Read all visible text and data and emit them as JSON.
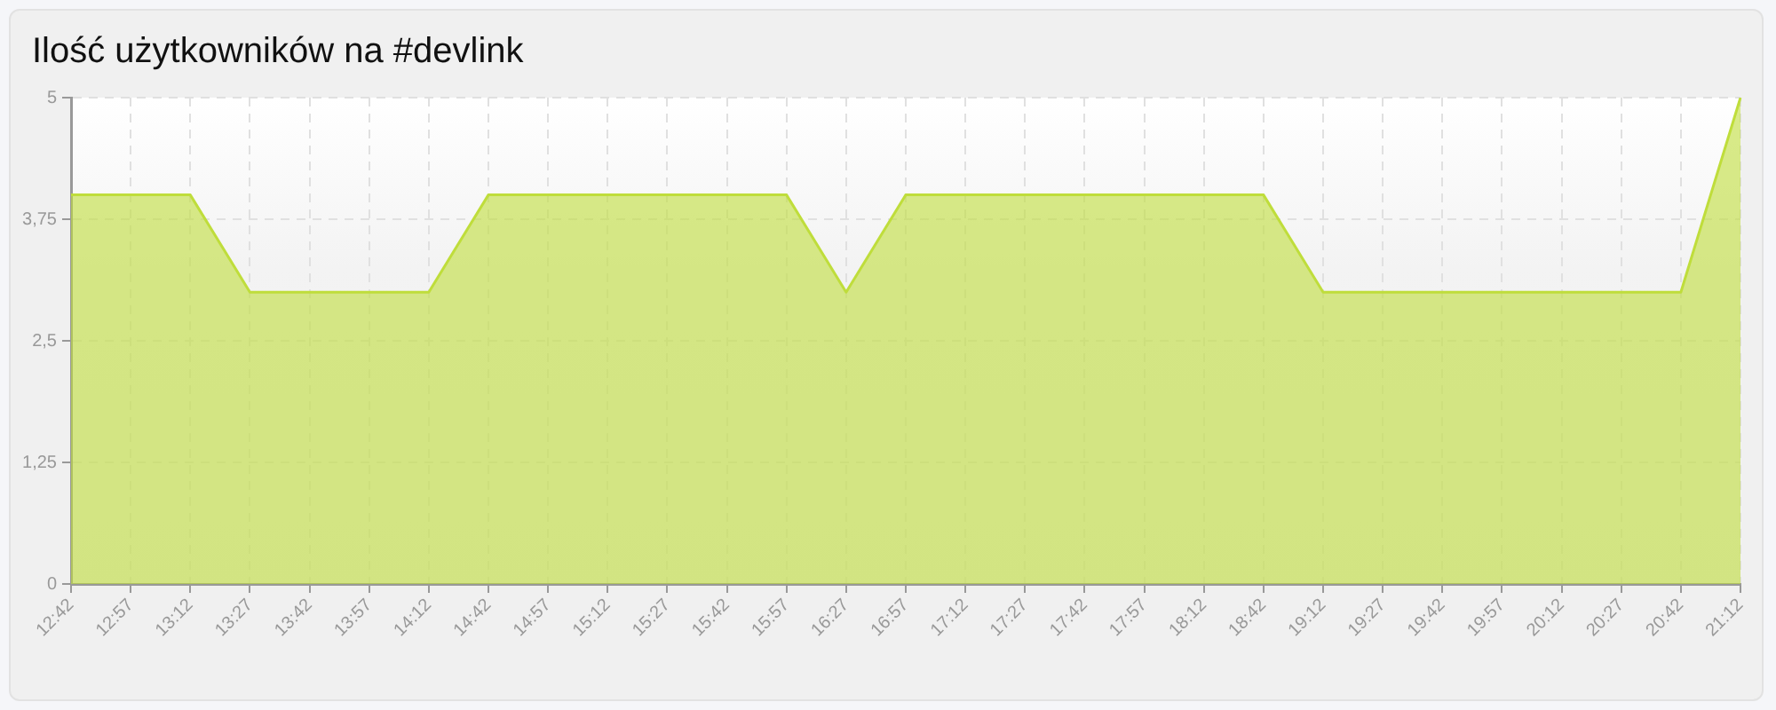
{
  "chart_data": {
    "type": "area",
    "title": "Ilość użytkowników na #devlink",
    "categories": [
      "12:42",
      "12:57",
      "13:12",
      "13:27",
      "13:42",
      "13:57",
      "14:12",
      "14:42",
      "14:57",
      "15:12",
      "15:27",
      "15:42",
      "15:57",
      "16:27",
      "16:57",
      "17:12",
      "17:27",
      "17:42",
      "17:57",
      "18:12",
      "18:42",
      "19:12",
      "19:27",
      "19:42",
      "19:57",
      "20:12",
      "20:27",
      "20:42",
      "21:12"
    ],
    "values": [
      4,
      4,
      4,
      3,
      3,
      3,
      3,
      4,
      4,
      4,
      4,
      4,
      4,
      3,
      4,
      4,
      4,
      4,
      4,
      4,
      4,
      3,
      3,
      3,
      3,
      3,
      3,
      3,
      5
    ],
    "color": "#bfdd3b",
    "ylim": [
      0,
      5
    ],
    "yticks": [
      0,
      {
        "value": 1.25,
        "label": "1,25"
      },
      {
        "value": 2.5,
        "label": "2,5"
      },
      {
        "value": 3.75,
        "label": "3,75"
      },
      5
    ],
    "grid": true
  }
}
